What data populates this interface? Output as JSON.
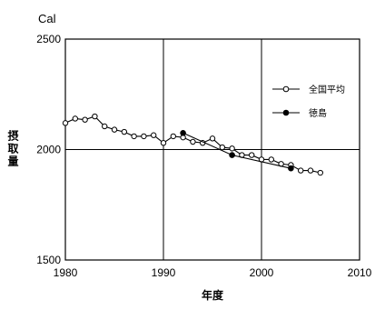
{
  "chart_data": {
    "type": "line",
    "unit_label": "Cal",
    "ylabel": "摂取量",
    "xlabel": "年度",
    "xlim": [
      1980,
      2010
    ],
    "ylim": [
      1500,
      2500
    ],
    "x_ticks": [
      1980,
      1990,
      2000,
      2010
    ],
    "y_ticks": [
      1500,
      2000,
      2500
    ],
    "grid": true,
    "legend_position": "right",
    "series": [
      {
        "name": "全国平均",
        "marker": "open-circle",
        "color": "#000000",
        "x": [
          1980,
          1981,
          1982,
          1983,
          1984,
          1985,
          1986,
          1987,
          1988,
          1989,
          1990,
          1991,
          1992,
          1993,
          1994,
          1995,
          1996,
          1997,
          1998,
          1999,
          2000,
          2001,
          2002,
          2003,
          2004,
          2005,
          2006
        ],
        "values": [
          2120,
          2140,
          2135,
          2150,
          2105,
          2090,
          2080,
          2060,
          2060,
          2065,
          2030,
          2060,
          2055,
          2035,
          2030,
          2050,
          2010,
          2005,
          1975,
          1975,
          1955,
          1955,
          1935,
          1930,
          1905,
          1905,
          1895
        ]
      },
      {
        "name": "徳島",
        "marker": "filled-circle",
        "color": "#000000",
        "x": [
          1992,
          1997,
          2003
        ],
        "values": [
          2075,
          1975,
          1915
        ]
      }
    ]
  }
}
